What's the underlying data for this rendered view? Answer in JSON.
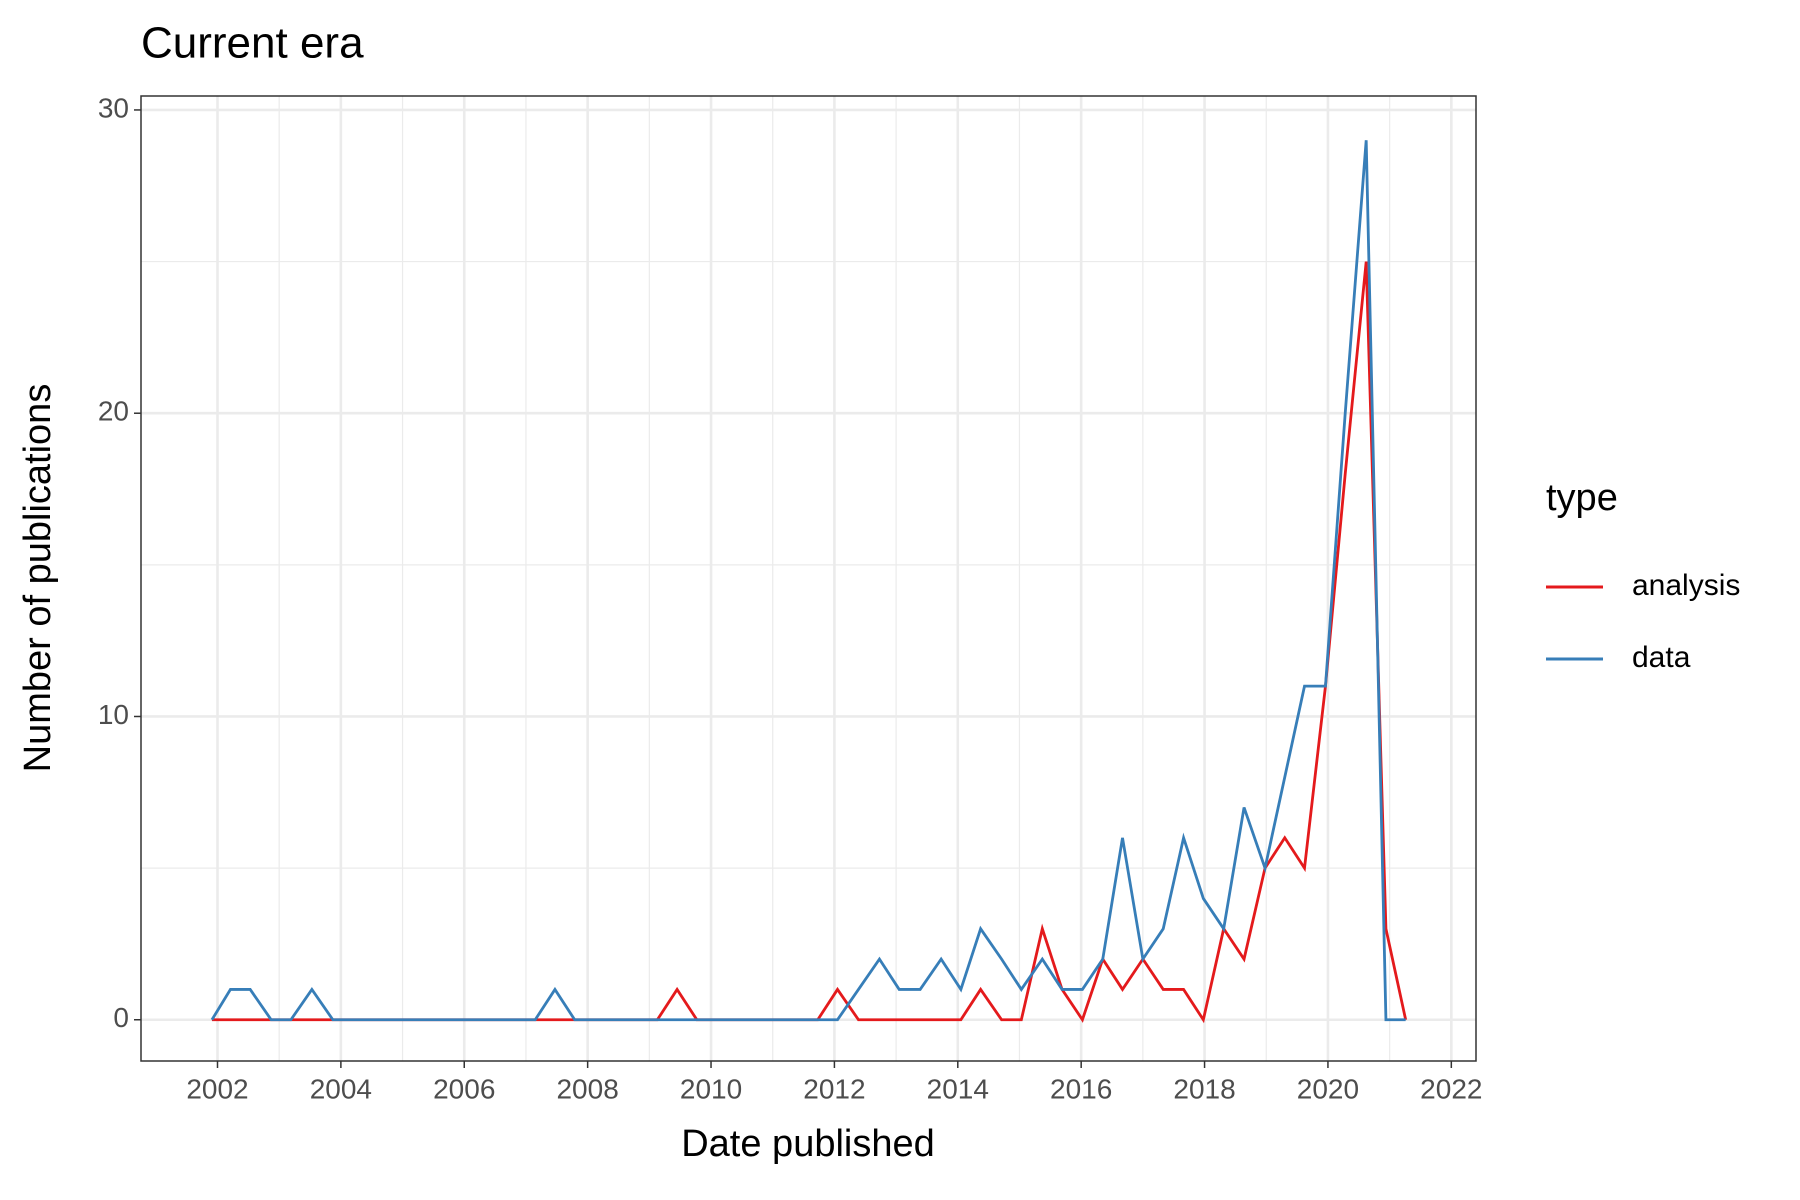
{
  "chart_data": {
    "type": "line",
    "title": "Current era",
    "x_label": "Date published",
    "y_label": "Number of publications",
    "x": [
      2001.91,
      2002.21,
      2002.53,
      2002.87,
      2003.19,
      2003.53,
      2003.87,
      2007.15,
      2007.47,
      2007.79,
      2009.13,
      2009.45,
      2009.77,
      2011.73,
      2012.05,
      2012.39,
      2012.73,
      2013.05,
      2013.39,
      2013.73,
      2014.05,
      2014.37,
      2014.71,
      2015.03,
      2015.37,
      2015.69,
      2016.02,
      2016.35,
      2016.67,
      2017.0,
      2017.33,
      2017.66,
      2017.98,
      2018.31,
      2018.64,
      2018.98,
      2019.3,
      2019.62,
      2019.96,
      2020.28,
      2020.62,
      2020.94,
      2021.26
    ],
    "series": [
      {
        "name": "analysis",
        "color": "#e41a1c",
        "values": [
          0,
          0,
          0,
          0,
          0,
          0,
          0,
          0,
          0,
          0,
          0,
          1,
          0,
          0,
          1,
          0,
          0,
          0,
          0,
          0,
          0,
          1,
          0,
          0,
          3,
          1,
          0,
          2,
          1,
          2,
          1,
          1,
          0,
          3,
          2,
          5,
          6,
          5,
          11,
          18,
          25,
          3,
          0
        ]
      },
      {
        "name": "data",
        "color": "#377eb8",
        "values": [
          0,
          1,
          1,
          0,
          0,
          1,
          0,
          0,
          1,
          0,
          0,
          0,
          0,
          0,
          0,
          1,
          2,
          1,
          1,
          2,
          1,
          3,
          2,
          1,
          2,
          1,
          1,
          2,
          6,
          2,
          3,
          6,
          4,
          3,
          7,
          5,
          8,
          11,
          11,
          20,
          29,
          0,
          0
        ]
      }
    ],
    "xlim": [
      2000.76,
      2022.4
    ],
    "ylim": [
      -1.36,
      30.46
    ],
    "xticks": [
      2002,
      2004,
      2006,
      2008,
      2010,
      2012,
      2014,
      2016,
      2018,
      2020,
      2022
    ],
    "yticks": [
      0,
      10,
      20,
      30
    ],
    "legend_title": "type",
    "grid": true
  }
}
